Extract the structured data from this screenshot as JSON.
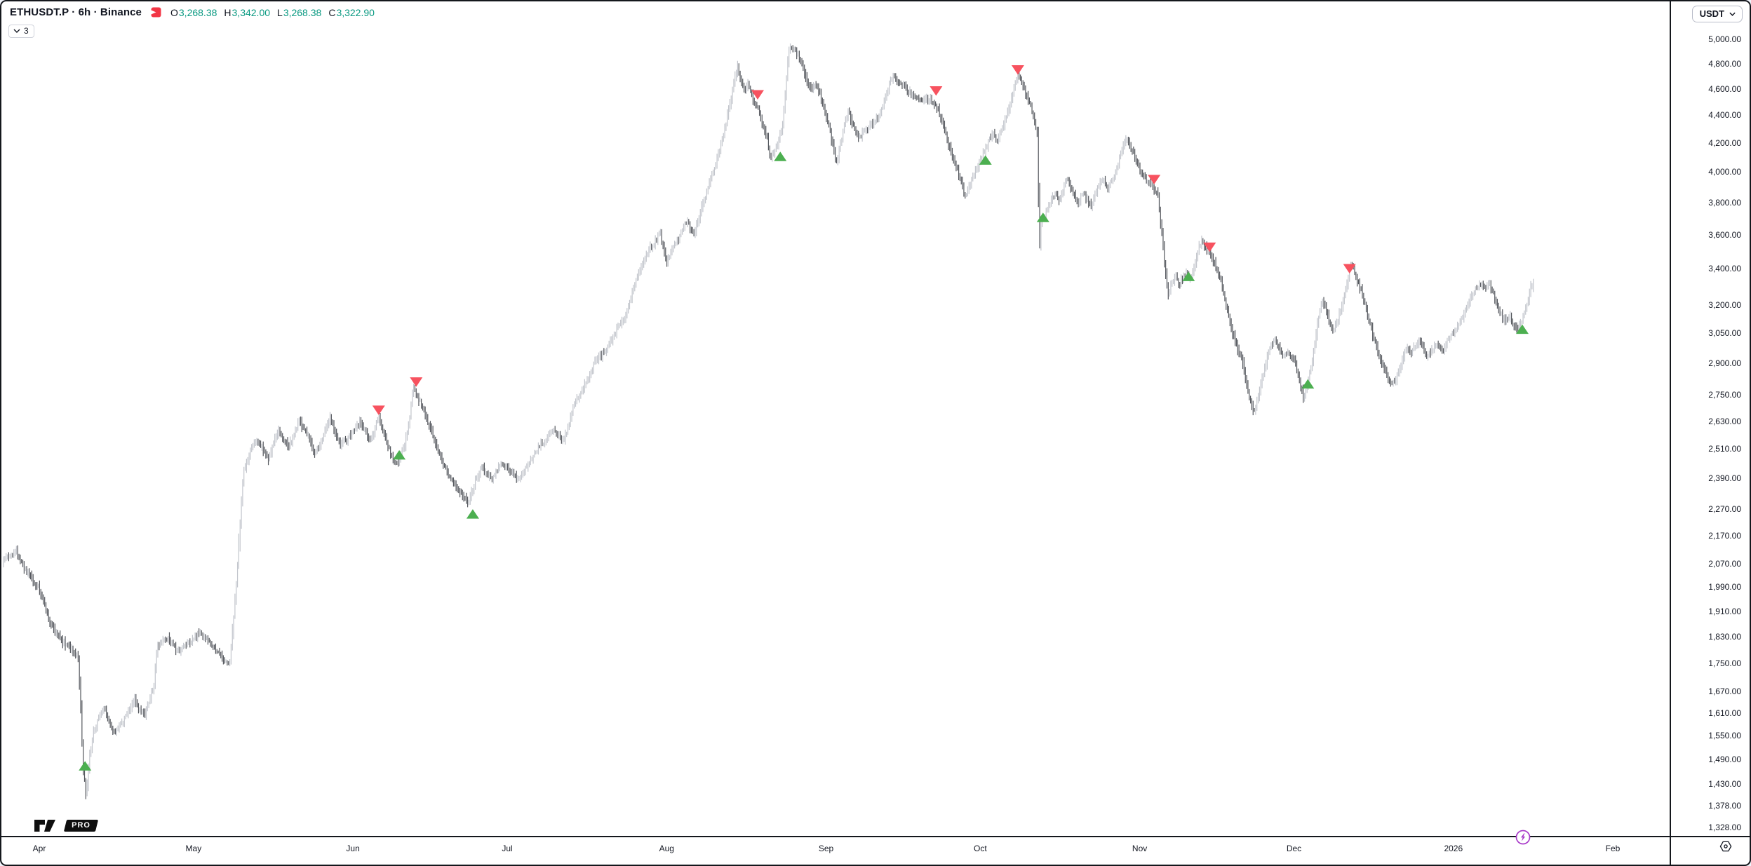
{
  "header": {
    "symbol_title": "ETHUSDT.P · 6h · Binance",
    "chart_style_icon": "candlestick-icon",
    "ohlc": [
      {
        "label": "O",
        "value": "3,268.38"
      },
      {
        "label": "H",
        "value": "3,342.00"
      },
      {
        "label": "L",
        "value": "3,268.38"
      },
      {
        "label": "C",
        "value": "3,322.90"
      }
    ],
    "ohlc_value_color": "#089981",
    "legend_toggle_count": "3"
  },
  "toolbar": {
    "currency_label": "USDT"
  },
  "footer": {
    "logo_badge": "PRO"
  },
  "chart_data": {
    "type": "bar",
    "symbol": "ETHUSDT.P",
    "interval": "6h",
    "exchange": "Binance",
    "quote_currency": "USDT",
    "scale": "logarithmic",
    "legend_last_bar": {
      "open": 3268.38,
      "high": 3342.0,
      "low": 3268.38,
      "close": 3322.9
    },
    "y_axis": {
      "side": "right",
      "ticks": [
        5000,
        4800,
        4600,
        4400,
        4200,
        4000,
        3800,
        3600,
        3400,
        3200,
        3050,
        2900,
        2750,
        2630,
        2510,
        2390,
        2270,
        2170,
        2070,
        1990,
        1910,
        1830,
        1750,
        1670,
        1610,
        1550,
        1490,
        1430,
        1378,
        1328
      ]
    },
    "x_axis": {
      "unit": "days_since_apr_1",
      "months": [
        {
          "label": "Apr",
          "t": 0
        },
        {
          "label": "May",
          "t": 30
        },
        {
          "label": "Jun",
          "t": 61
        },
        {
          "label": "Jul",
          "t": 91
        },
        {
          "label": "Aug",
          "t": 122
        },
        {
          "label": "Sep",
          "t": 153
        },
        {
          "label": "Oct",
          "t": 183
        },
        {
          "label": "Nov",
          "t": 214
        },
        {
          "label": "Dec",
          "t": 244
        },
        {
          "label": "2026",
          "t": 275
        },
        {
          "label": "Feb",
          "t": 306
        }
      ]
    },
    "colors": {
      "up_bar": "#c2c5cc",
      "down_bar": "#53565c",
      "buy_marker": "#4caf50",
      "sell_marker": "#f7525f",
      "ohlc_text": "#089981",
      "legend_icon": "#f23645",
      "lightning": "#a93bc9"
    },
    "signals": {
      "buy": [
        {
          "t": 8.9,
          "price": 1473
        },
        {
          "t": 70.0,
          "price": 2485
        },
        {
          "t": 84.3,
          "price": 2250
        },
        {
          "t": 144.1,
          "price": 4105
        },
        {
          "t": 184.0,
          "price": 4080
        },
        {
          "t": 195.2,
          "price": 3705
        },
        {
          "t": 223.5,
          "price": 3355
        },
        {
          "t": 246.7,
          "price": 2800
        },
        {
          "t": 288.4,
          "price": 3070
        }
      ],
      "sell": [
        {
          "t": 66.0,
          "price": 2680
        },
        {
          "t": 73.3,
          "price": 2810
        },
        {
          "t": 139.7,
          "price": 4555
        },
        {
          "t": 174.4,
          "price": 4585
        },
        {
          "t": 190.3,
          "price": 4750
        },
        {
          "t": 216.8,
          "price": 3950
        },
        {
          "t": 227.6,
          "price": 3525
        },
        {
          "t": 254.8,
          "price": 3400
        }
      ]
    },
    "price_path": [
      [
        -7.2,
        2075
      ],
      [
        -6,
        2098
      ],
      [
        -4.5,
        2115
      ],
      [
        -3,
        2060
      ],
      [
        -1.5,
        2020
      ],
      [
        0,
        1985
      ],
      [
        1,
        1932
      ],
      [
        2,
        1876
      ],
      [
        3,
        1850
      ],
      [
        4,
        1828
      ],
      [
        5,
        1808
      ],
      [
        6,
        1796
      ],
      [
        7,
        1780
      ],
      [
        7.6,
        1766
      ],
      [
        8.1,
        1610
      ],
      [
        8.5,
        1470
      ],
      [
        8.9,
        1428
      ],
      [
        9.1,
        1396
      ],
      [
        9.4,
        1448
      ],
      [
        9.8,
        1500
      ],
      [
        10.5,
        1560
      ],
      [
        11.5,
        1598
      ],
      [
        12.5,
        1628
      ],
      [
        13.5,
        1586
      ],
      [
        14.5,
        1558
      ],
      [
        15.5,
        1576
      ],
      [
        16.5,
        1592
      ],
      [
        17.5,
        1622
      ],
      [
        18.5,
        1648
      ],
      [
        19.5,
        1618
      ],
      [
        20.5,
        1602
      ],
      [
        21.5,
        1650
      ],
      [
        22.3,
        1694
      ],
      [
        23,
        1802
      ],
      [
        24,
        1820
      ],
      [
        25,
        1826
      ],
      [
        26,
        1802
      ],
      [
        27,
        1786
      ],
      [
        28,
        1798
      ],
      [
        29,
        1812
      ],
      [
        30,
        1824
      ],
      [
        31,
        1846
      ],
      [
        32,
        1830
      ],
      [
        33,
        1812
      ],
      [
        34,
        1794
      ],
      [
        35,
        1778
      ],
      [
        36,
        1760
      ],
      [
        37,
        1746
      ],
      [
        37.7,
        1870
      ],
      [
        38.3,
        2010
      ],
      [
        38.8,
        2150
      ],
      [
        39.3,
        2300
      ],
      [
        39.8,
        2420
      ],
      [
        40.5,
        2468
      ],
      [
        41.5,
        2522
      ],
      [
        42.5,
        2548
      ],
      [
        43.5,
        2506
      ],
      [
        44.5,
        2468
      ],
      [
        45.5,
        2532
      ],
      [
        46.5,
        2592
      ],
      [
        47.5,
        2556
      ],
      [
        48.5,
        2518
      ],
      [
        49.5,
        2576
      ],
      [
        50.5,
        2632
      ],
      [
        51.5,
        2596
      ],
      [
        52.5,
        2558
      ],
      [
        53.5,
        2490
      ],
      [
        54.5,
        2528
      ],
      [
        55.5,
        2592
      ],
      [
        56.5,
        2646
      ],
      [
        57.5,
        2586
      ],
      [
        58.5,
        2528
      ],
      [
        59.5,
        2548
      ],
      [
        60.5,
        2568
      ],
      [
        61.5,
        2598
      ],
      [
        62.5,
        2628
      ],
      [
        63.5,
        2580
      ],
      [
        64.5,
        2546
      ],
      [
        65.3,
        2606
      ],
      [
        66,
        2642
      ],
      [
        66.7,
        2598
      ],
      [
        67.4,
        2546
      ],
      [
        68.2,
        2498
      ],
      [
        69,
        2460
      ],
      [
        69.7,
        2444
      ],
      [
        70.5,
        2494
      ],
      [
        71.2,
        2542
      ],
      [
        72,
        2644
      ],
      [
        72.7,
        2784
      ],
      [
        73.5,
        2742
      ],
      [
        74.4,
        2700
      ],
      [
        75.4,
        2638
      ],
      [
        76.4,
        2574
      ],
      [
        77.4,
        2512
      ],
      [
        78.4,
        2456
      ],
      [
        79.4,
        2410
      ],
      [
        80.4,
        2376
      ],
      [
        81.4,
        2346
      ],
      [
        82.4,
        2320
      ],
      [
        83.3,
        2294
      ],
      [
        84.2,
        2336
      ],
      [
        85,
        2390
      ],
      [
        86,
        2434
      ],
      [
        87,
        2404
      ],
      [
        88,
        2388
      ],
      [
        89,
        2422
      ],
      [
        90,
        2452
      ],
      [
        91,
        2430
      ],
      [
        92,
        2412
      ],
      [
        93,
        2386
      ],
      [
        94,
        2414
      ],
      [
        95,
        2448
      ],
      [
        96,
        2476
      ],
      [
        97,
        2512
      ],
      [
        98,
        2536
      ],
      [
        99,
        2562
      ],
      [
        100,
        2592
      ],
      [
        101,
        2566
      ],
      [
        102,
        2548
      ],
      [
        103,
        2616
      ],
      [
        104,
        2706
      ],
      [
        105,
        2748
      ],
      [
        106,
        2790
      ],
      [
        107,
        2844
      ],
      [
        108,
        2906
      ],
      [
        109,
        2934
      ],
      [
        110,
        2958
      ],
      [
        111,
        3006
      ],
      [
        112,
        3056
      ],
      [
        113,
        3094
      ],
      [
        114,
        3136
      ],
      [
        115,
        3238
      ],
      [
        116,
        3346
      ],
      [
        117,
        3416
      ],
      [
        118,
        3484
      ],
      [
        119,
        3526
      ],
      [
        120,
        3564
      ],
      [
        120.7,
        3624
      ],
      [
        121.4,
        3510
      ],
      [
        122,
        3432
      ],
      [
        122.8,
        3496
      ],
      [
        123.6,
        3544
      ],
      [
        124.4,
        3580
      ],
      [
        125.2,
        3636
      ],
      [
        126,
        3684
      ],
      [
        126.7,
        3636
      ],
      [
        127.4,
        3604
      ],
      [
        128.2,
        3694
      ],
      [
        129,
        3794
      ],
      [
        130,
        3890
      ],
      [
        131,
        3994
      ],
      [
        132,
        4114
      ],
      [
        133,
        4246
      ],
      [
        134,
        4428
      ],
      [
        135,
        4624
      ],
      [
        135.8,
        4780
      ],
      [
        136.5,
        4656
      ],
      [
        137.2,
        4570
      ],
      [
        137.9,
        4644
      ],
      [
        138.6,
        4530
      ],
      [
        139.4,
        4470
      ],
      [
        140.1,
        4424
      ],
      [
        140.8,
        4324
      ],
      [
        141.5,
        4244
      ],
      [
        142.2,
        4084
      ],
      [
        143,
        4150
      ],
      [
        143.8,
        4216
      ],
      [
        144.6,
        4338
      ],
      [
        145.2,
        4650
      ],
      [
        145.7,
        4894
      ],
      [
        146.2,
        4952
      ],
      [
        146.6,
        4908
      ],
      [
        146.9,
        4948
      ],
      [
        147.3,
        4876
      ],
      [
        148,
        4846
      ],
      [
        148.7,
        4740
      ],
      [
        149.4,
        4654
      ],
      [
        150.2,
        4604
      ],
      [
        151,
        4646
      ],
      [
        151.8,
        4550
      ],
      [
        152.6,
        4454
      ],
      [
        153.4,
        4334
      ],
      [
        154.2,
        4208
      ],
      [
        155,
        4064
      ],
      [
        155.8,
        4190
      ],
      [
        156.6,
        4330
      ],
      [
        157.3,
        4436
      ],
      [
        158,
        4344
      ],
      [
        158.8,
        4264
      ],
      [
        159.6,
        4244
      ],
      [
        160.5,
        4286
      ],
      [
        161.5,
        4324
      ],
      [
        162.5,
        4354
      ],
      [
        163.5,
        4416
      ],
      [
        164.5,
        4536
      ],
      [
        165.4,
        4648
      ],
      [
        166.2,
        4694
      ],
      [
        167,
        4650
      ],
      [
        168,
        4620
      ],
      [
        169,
        4576
      ],
      [
        170,
        4554
      ],
      [
        171,
        4526
      ],
      [
        172,
        4506
      ],
      [
        173,
        4524
      ],
      [
        174,
        4490
      ],
      [
        174.6,
        4454
      ],
      [
        175.3,
        4380
      ],
      [
        176,
        4304
      ],
      [
        176.8,
        4190
      ],
      [
        177.6,
        4094
      ],
      [
        178.4,
        4024
      ],
      [
        179.2,
        3944
      ],
      [
        180,
        3834
      ],
      [
        180.8,
        3904
      ],
      [
        181.6,
        3964
      ],
      [
        182.4,
        4014
      ],
      [
        183.2,
        4094
      ],
      [
        184,
        4154
      ],
      [
        184.8,
        4224
      ],
      [
        185.6,
        4264
      ],
      [
        186.4,
        4206
      ],
      [
        187.2,
        4300
      ],
      [
        188,
        4394
      ],
      [
        188.8,
        4484
      ],
      [
        189.6,
        4594
      ],
      [
        190.3,
        4714
      ],
      [
        190.9,
        4666
      ],
      [
        191.5,
        4604
      ],
      [
        192.2,
        4534
      ],
      [
        192.9,
        4450
      ],
      [
        193.6,
        4360
      ],
      [
        194.1,
        4264
      ],
      [
        194.3,
        3830
      ],
      [
        194.45,
        3432
      ],
      [
        194.65,
        3648
      ],
      [
        195,
        3684
      ],
      [
        195.6,
        3724
      ],
      [
        196.3,
        3770
      ],
      [
        197,
        3824
      ],
      [
        197.7,
        3864
      ],
      [
        198.4,
        3816
      ],
      [
        199.1,
        3874
      ],
      [
        199.8,
        3950
      ],
      [
        200.5,
        3904
      ],
      [
        201.3,
        3844
      ],
      [
        202.1,
        3794
      ],
      [
        202.9,
        3874
      ],
      [
        203.7,
        3824
      ],
      [
        204.5,
        3774
      ],
      [
        205.3,
        3846
      ],
      [
        206.1,
        3914
      ],
      [
        206.9,
        3954
      ],
      [
        207.7,
        3894
      ],
      [
        208.5,
        3936
      ],
      [
        209.3,
        3996
      ],
      [
        210,
        4086
      ],
      [
        210.7,
        4184
      ],
      [
        211.4,
        4240
      ],
      [
        212.1,
        4174
      ],
      [
        212.8,
        4124
      ],
      [
        213.5,
        4064
      ],
      [
        214.2,
        4004
      ],
      [
        215.2,
        3944
      ],
      [
        216.2,
        3914
      ],
      [
        217,
        3884
      ],
      [
        217.6,
        3846
      ],
      [
        218.2,
        3630
      ],
      [
        218.8,
        3434
      ],
      [
        219.5,
        3260
      ],
      [
        220.2,
        3314
      ],
      [
        220.9,
        3370
      ],
      [
        221.6,
        3304
      ],
      [
        222.3,
        3340
      ],
      [
        223,
        3374
      ],
      [
        223.7,
        3340
      ],
      [
        224.4,
        3396
      ],
      [
        225.1,
        3470
      ],
      [
        225.9,
        3560
      ],
      [
        226.7,
        3534
      ],
      [
        227.5,
        3496
      ],
      [
        228.3,
        3446
      ],
      [
        229.1,
        3384
      ],
      [
        229.9,
        3314
      ],
      [
        230.9,
        3194
      ],
      [
        231.9,
        3064
      ],
      [
        232.9,
        2986
      ],
      [
        233.9,
        2914
      ],
      [
        234.9,
        2784
      ],
      [
        235.7,
        2694
      ],
      [
        236.4,
        2674
      ],
      [
        237.1,
        2750
      ],
      [
        237.9,
        2840
      ],
      [
        238.7,
        2920
      ],
      [
        239.5,
        2986
      ],
      [
        240.3,
        3014
      ],
      [
        241.1,
        2974
      ],
      [
        241.9,
        2926
      ],
      [
        242.7,
        2954
      ],
      [
        243.5,
        2934
      ],
      [
        244.3,
        2896
      ],
      [
        245.1,
        2814
      ],
      [
        245.8,
        2734
      ],
      [
        246.5,
        2790
      ],
      [
        247.3,
        2884
      ],
      [
        248.1,
        3016
      ],
      [
        248.9,
        3150
      ],
      [
        249.6,
        3224
      ],
      [
        250.3,
        3156
      ],
      [
        251,
        3094
      ],
      [
        251.7,
        3060
      ],
      [
        252.4,
        3114
      ],
      [
        253.1,
        3170
      ],
      [
        253.8,
        3244
      ],
      [
        254.5,
        3344
      ],
      [
        255.1,
        3444
      ],
      [
        255.7,
        3390
      ],
      [
        256.4,
        3330
      ],
      [
        257.1,
        3266
      ],
      [
        257.9,
        3186
      ],
      [
        258.7,
        3106
      ],
      [
        259.5,
        3024
      ],
      [
        260.3,
        2954
      ],
      [
        261.1,
        2900
      ],
      [
        261.9,
        2854
      ],
      [
        262.7,
        2810
      ],
      [
        263.5,
        2800
      ],
      [
        264.3,
        2860
      ],
      [
        265.1,
        2920
      ],
      [
        265.9,
        2970
      ],
      [
        266.7,
        2944
      ],
      [
        267.5,
        2986
      ],
      [
        268.3,
        3006
      ],
      [
        269.1,
        2974
      ],
      [
        269.9,
        2936
      ],
      [
        270.7,
        2954
      ],
      [
        271.5,
        2996
      ],
      [
        272.3,
        2980
      ],
      [
        273.1,
        2964
      ],
      [
        273.9,
        3014
      ],
      [
        274.7,
        3044
      ],
      [
        275.5,
        3076
      ],
      [
        276.3,
        3100
      ],
      [
        277.1,
        3150
      ],
      [
        277.9,
        3200
      ],
      [
        278.7,
        3254
      ],
      [
        279.5,
        3296
      ],
      [
        280.3,
        3314
      ],
      [
        281.1,
        3286
      ],
      [
        281.9,
        3330
      ],
      [
        282.7,
        3264
      ],
      [
        283.5,
        3190
      ],
      [
        284.3,
        3144
      ],
      [
        285.1,
        3114
      ],
      [
        285.9,
        3144
      ],
      [
        286.7,
        3096
      ],
      [
        287.5,
        3074
      ],
      [
        288.3,
        3120
      ],
      [
        289.1,
        3180
      ],
      [
        289.7,
        3250
      ],
      [
        290.1,
        3300
      ],
      [
        290.5,
        3322.9
      ]
    ]
  }
}
